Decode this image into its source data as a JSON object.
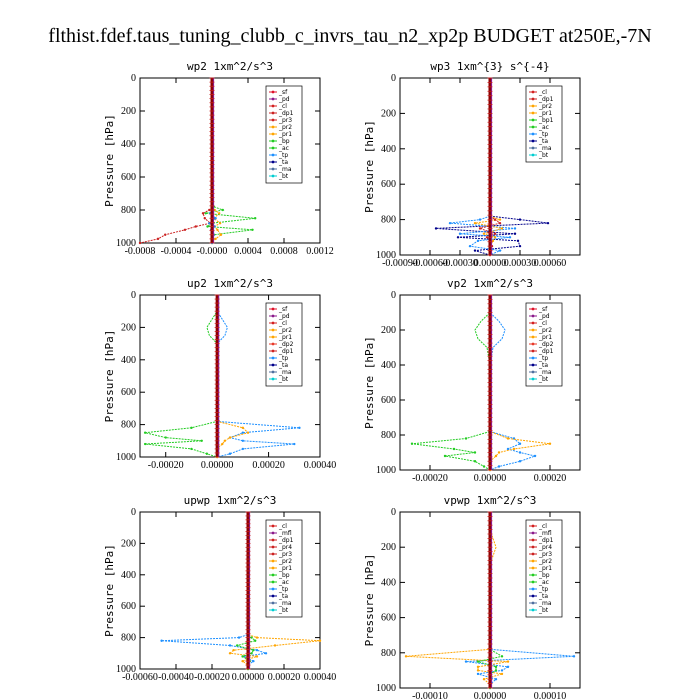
{
  "figure_title": "flthist.fdef.taus_tuning_clubb_c_invrs_tau_n2_xp2p  BUDGET at250E,-7N",
  "colors": {
    "sf": "#e0102a",
    "pd": "#8b1a8b",
    "cl": "#d42020",
    "dp1": "#cc2222",
    "dp2": "#e8392a",
    "pr1": "#ffa500",
    "pr2": "#ffa500",
    "pr3": "#cc2222",
    "pr4": "#cc2222",
    "bp": "#22cc22",
    "bp1": "#22cc22",
    "ac": "#22cc22",
    "tp": "#1e90ff",
    "ta": "#00008b",
    "ma": "#4f6f9f",
    "bt": "#00ced1",
    "mfl": "#8b1a8b",
    "center": "#8b0000"
  },
  "chart_data": [
    {
      "type": "line",
      "title": "wp2  1xm^2/s^3",
      "ylabel": "Pressure [hPa]",
      "ylim": [
        1000,
        0
      ],
      "xlim": [
        -0.0008,
        0.0012
      ],
      "xticks": [
        "-0.0008",
        "-0.0004",
        "-0.0000",
        "0.0004",
        "0.0008",
        "0.0012"
      ],
      "xtick_values": [
        -0.0008,
        -0.0004,
        0.0,
        0.0004,
        0.0008,
        0.0012
      ],
      "yticks": [
        "0",
        "200",
        "400",
        "600",
        "800",
        "1000"
      ],
      "legend": [
        "_sf",
        "_pd",
        "_cl",
        "_dp1",
        "_pr3",
        "_pr2",
        "_pr1",
        "_bp",
        "_ac",
        "_tp",
        "_ta",
        "_ma",
        "_bt"
      ],
      "pressure": [
        0,
        100,
        200,
        300,
        400,
        500,
        600,
        700,
        780,
        800,
        820,
        850,
        880,
        900,
        920,
        950,
        975,
        1000
      ],
      "series": [
        {
          "name": "_bp",
          "color": "bp",
          "values": [
            0,
            0,
            0,
            0,
            0,
            0,
            0,
            0,
            2e-05,
            0.00012,
            -7e-05,
            0.00048,
            0.0,
            -5e-05,
            0.00045,
            2e-05,
            0.0,
            0.0
          ]
        },
        {
          "name": "_dp1",
          "color": "dp1",
          "values": [
            0,
            0,
            0,
            0,
            0,
            0,
            0,
            0,
            0,
            -3e-05,
            -0.0001,
            -8e-05,
            -2e-05,
            -0.00018,
            -0.0003,
            -0.00052,
            -0.0006,
            -0.0008
          ]
        },
        {
          "name": "_pr2",
          "color": "pr1",
          "values": [
            0,
            0,
            0,
            0,
            0,
            0,
            0,
            0,
            0,
            3e-05,
            8e-05,
            2e-05,
            9e-05,
            3e-05,
            6e-05,
            0.0001,
            4e-05,
            0.0
          ]
        },
        {
          "name": "_ac",
          "color": "tp",
          "values": [
            0,
            0,
            0,
            0,
            0,
            0,
            0,
            0,
            0,
            1e-05,
            -2e-05,
            4e-05,
            -3e-05,
            3e-05,
            -1e-05,
            2e-05,
            0.0,
            0.0
          ]
        }
      ]
    },
    {
      "type": "line",
      "title": "wp3  1xm^{3} s^{-4}",
      "ylabel": "Pressure [hPa]",
      "ylim": [
        1000,
        0
      ],
      "xlim": [
        -0.0009,
        0.0009
      ],
      "xticks": [
        "-0.00090",
        "-0.00060",
        "-0.00030",
        "0.00000",
        "0.00030",
        "0.00060"
      ],
      "xtick_values": [
        -0.0009,
        -0.0006,
        -0.0003,
        0.0,
        0.0003,
        0.0006
      ],
      "yticks": [
        "0",
        "200",
        "400",
        "600",
        "800",
        "1000"
      ],
      "legend": [
        "_cl",
        "_dp1",
        "_pr2",
        "_pr1",
        "_bp1",
        "_ac",
        "_tp",
        "_ta",
        "_ma",
        "_bt"
      ],
      "pressure": [
        0,
        100,
        200,
        300,
        400,
        500,
        600,
        700,
        780,
        800,
        820,
        850,
        880,
        900,
        920,
        950,
        975,
        1000
      ],
      "series": [
        {
          "name": "_ta",
          "color": "ta",
          "values": [
            0,
            0,
            0,
            0,
            0,
            0,
            0,
            0,
            0,
            0.0003,
            0.00058,
            -0.00054,
            0.00025,
            -0.00032,
            0.00028,
            0.0003,
            -0.00015,
            0.0
          ]
        },
        {
          "name": "_tp",
          "color": "tp",
          "values": [
            0,
            0,
            0,
            0,
            0,
            0,
            0,
            0,
            0,
            -0.0001,
            -0.0004,
            0.00025,
            -0.0003,
            0.0002,
            -0.00012,
            -0.0002,
            0.0001,
            0.0
          ]
        },
        {
          "name": "_pr2",
          "color": "pr1",
          "values": [
            0,
            0,
            0,
            0,
            0,
            0,
            0,
            0,
            0,
            0.0001,
            -0.00015,
            0.00012,
            -6e-05,
            5e-05,
            3e-05,
            0.0,
            0.0,
            0.0
          ]
        },
        {
          "name": "_dp1",
          "color": "dp1",
          "values": [
            0,
            0,
            0,
            0,
            0,
            0,
            0,
            0,
            0,
            5e-05,
            0.0001,
            -0.0001,
            5e-05,
            -3e-05,
            0.0,
            2e-05,
            0.0,
            0.0
          ]
        }
      ]
    },
    {
      "type": "line",
      "title": "up2  1xm^2/s^3",
      "ylabel": "Pressure [hPa]",
      "ylim": [
        1000,
        0
      ],
      "xlim": [
        -0.0003,
        0.0004
      ],
      "xticks": [
        "-0.00020",
        "0.00000",
        "0.00020",
        "0.00040"
      ],
      "xtick_values": [
        -0.0002,
        0.0,
        0.0002,
        0.0004
      ],
      "yticks": [
        "0",
        "200",
        "400",
        "600",
        "800",
        "1000"
      ],
      "legend": [
        "_sf",
        "_pd",
        "_cl",
        "_pr2",
        "_pr1",
        "_dp2",
        "_dp1",
        "_tp",
        "_ta",
        "_ma",
        "_bt"
      ],
      "pressure": [
        0,
        100,
        150,
        200,
        250,
        300,
        400,
        500,
        600,
        700,
        780,
        820,
        850,
        880,
        900,
        920,
        950,
        980,
        1000
      ],
      "series": [
        {
          "name": "_dp2",
          "color": "bp",
          "values": [
            0,
            0,
            -2e-05,
            -4e-05,
            -3e-05,
            0,
            0,
            0,
            0,
            0,
            0,
            -0.0001,
            -0.00028,
            -0.0002,
            -6e-05,
            -0.00028,
            -0.0001,
            -4e-05,
            0.0
          ]
        },
        {
          "name": "_tp",
          "color": "tp",
          "values": [
            0,
            0,
            2e-05,
            4e-05,
            3e-05,
            0,
            0,
            0,
            0,
            0,
            0,
            0.00032,
            0.0001,
            5e-05,
            0.0001,
            0.0003,
            0.0001,
            5e-05,
            0.0
          ]
        },
        {
          "name": "_pr2",
          "color": "pr1",
          "values": [
            0,
            0,
            0,
            0,
            0,
            0,
            0,
            0,
            0,
            0,
            0,
            0.0001,
            0.00012,
            5e-05,
            3e-05,
            2e-05,
            0.0,
            0.0,
            0.0
          ]
        }
      ]
    },
    {
      "type": "line",
      "title": "vp2  1xm^2/s^3",
      "ylabel": "Pressure [hPa]",
      "ylim": [
        1000,
        0
      ],
      "xlim": [
        -0.0003,
        0.0003
      ],
      "xticks": [
        "-0.00020",
        "0.00000",
        "0.00020"
      ],
      "xtick_values": [
        -0.0002,
        0.0,
        0.0002
      ],
      "yticks": [
        "0",
        "200",
        "400",
        "600",
        "800",
        "1000"
      ],
      "legend": [
        "_sf",
        "_pd",
        "_cl",
        "_pr2",
        "_pr1",
        "_dp2",
        "_dp1",
        "_tp",
        "_ta",
        "_ma",
        "_bt"
      ],
      "pressure": [
        0,
        100,
        150,
        200,
        250,
        300,
        400,
        500,
        600,
        700,
        780,
        820,
        850,
        880,
        900,
        920,
        950,
        980,
        1000
      ],
      "series": [
        {
          "name": "_dp2",
          "color": "bp",
          "values": [
            0,
            0,
            -3e-05,
            -5e-05,
            -4e-05,
            -1e-05,
            0,
            0,
            0,
            0,
            0,
            -8e-05,
            -0.00026,
            -0.00012,
            -5e-05,
            -0.00015,
            -5e-05,
            -2e-05,
            0.0
          ]
        },
        {
          "name": "_tp",
          "color": "tp",
          "values": [
            0,
            0,
            3e-05,
            5e-05,
            4e-05,
            1e-05,
            0,
            0,
            0,
            0,
            0,
            8e-05,
            0.0001,
            6e-05,
            0.0001,
            0.00015,
            0.0001,
            3e-05,
            0.0
          ]
        },
        {
          "name": "_pr2",
          "color": "pr1",
          "values": [
            0,
            0,
            0,
            0,
            0,
            0,
            0,
            0,
            0,
            0,
            0,
            6e-05,
            0.0002,
            8e-05,
            3e-05,
            2e-05,
            0.0,
            0.0,
            0.0
          ]
        }
      ]
    },
    {
      "type": "line",
      "title": "upwp  1xm^2/s^3",
      "ylabel": "Pressure [hPa]",
      "ylim": [
        1000,
        0
      ],
      "xlim": [
        -0.0006,
        0.0004
      ],
      "xticks": [
        "-0.00060",
        "-0.00040",
        "-0.00020",
        "0.00000",
        "0.00020",
        "0.00040"
      ],
      "xtick_values": [
        -0.0006,
        -0.0004,
        -0.0002,
        0.0,
        0.0002,
        0.0004
      ],
      "yticks": [
        "0",
        "200",
        "400",
        "600",
        "800",
        "1000"
      ],
      "legend": [
        "_cl",
        "_mfl",
        "_dp1",
        "_pr4",
        "_pr3",
        "_pr2",
        "_pr1",
        "_bp",
        "_ac",
        "_tp",
        "_ta",
        "_ma",
        "_bt"
      ],
      "pressure": [
        0,
        100,
        200,
        300,
        400,
        500,
        600,
        700,
        780,
        800,
        820,
        850,
        880,
        900,
        920,
        950,
        975,
        1000
      ],
      "series": [
        {
          "name": "_tp",
          "color": "tp",
          "values": [
            0,
            0,
            0,
            0,
            0,
            0,
            0,
            0,
            0,
            -5e-05,
            -0.00048,
            -0.0001,
            5e-05,
            0.0001,
            -2e-05,
            3e-05,
            0.0,
            0.0
          ]
        },
        {
          "name": "_pr1",
          "color": "pr1",
          "values": [
            0,
            0,
            0,
            0,
            0,
            0,
            0,
            0,
            0,
            5e-05,
            0.0004,
            0.00015,
            -8e-05,
            -0.0001,
            5e-05,
            -3e-05,
            0.0,
            0.0
          ]
        },
        {
          "name": "_bp",
          "color": "bp",
          "values": [
            0,
            0,
            0,
            0,
            0,
            0,
            0,
            0,
            0,
            2e-05,
            4e-05,
            -6e-05,
            3e-05,
            2e-05,
            -3e-05,
            1e-05,
            0.0,
            0.0
          ]
        }
      ]
    },
    {
      "type": "line",
      "title": "vpwp  1xm^2/s^3",
      "ylabel": "Pressure [hPa]",
      "ylim": [
        1000,
        0
      ],
      "xlim": [
        -0.00015,
        0.00015
      ],
      "xticks": [
        "-0.00010",
        "0.00000",
        "0.00010"
      ],
      "xtick_values": [
        -0.0001,
        0.0,
        0.0001
      ],
      "yticks": [
        "0",
        "200",
        "400",
        "600",
        "800",
        "1000"
      ],
      "legend": [
        "_cl",
        "_mfl",
        "_dp1",
        "_pr4",
        "_pr3",
        "_pr2",
        "_pr1",
        "_bp",
        "_ac",
        "_tp",
        "_ta",
        "_ma",
        "_bt"
      ],
      "pressure": [
        0,
        100,
        150,
        200,
        250,
        300,
        400,
        500,
        600,
        700,
        780,
        820,
        850,
        880,
        900,
        920,
        950,
        980,
        1000
      ],
      "series": [
        {
          "name": "_tp",
          "color": "tp",
          "values": [
            0,
            0,
            0,
            0,
            0,
            0,
            0,
            0,
            0,
            0,
            0,
            0.00014,
            -4e-05,
            3e-05,
            2e-05,
            -2e-05,
            1e-05,
            0.0,
            0.0
          ]
        },
        {
          "name": "_pr1",
          "color": "pr1",
          "values": [
            0,
            0,
            5e-06,
            1e-05,
            5e-06,
            0,
            0,
            0,
            0,
            0,
            0,
            -0.00014,
            3e-05,
            -2e-05,
            -2e-05,
            2e-05,
            -1e-05,
            0.0,
            0.0
          ]
        },
        {
          "name": "_bp",
          "color": "bp",
          "values": [
            0,
            0,
            0,
            0,
            0,
            0,
            0,
            0,
            0,
            0,
            0,
            2e-05,
            -2e-05,
            1e-05,
            1e-05,
            0.0,
            0.0,
            0.0,
            0.0
          ]
        }
      ]
    }
  ]
}
